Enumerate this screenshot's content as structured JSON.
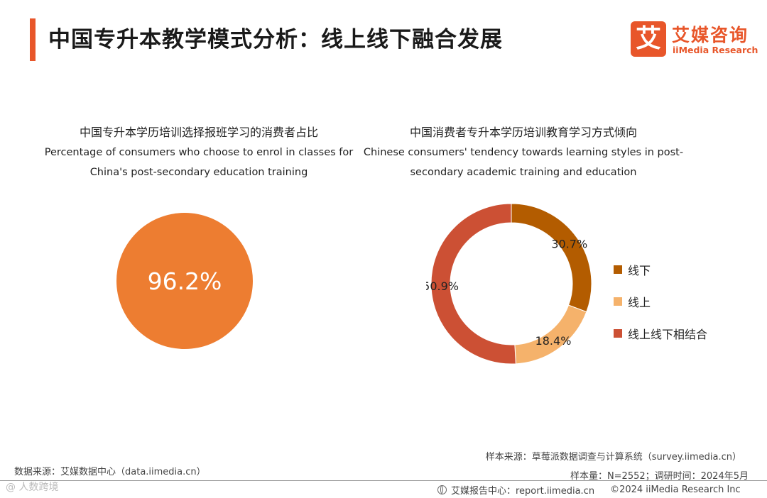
{
  "header": {
    "title": "中国专升本教学模式分析：线上线下融合发展",
    "logo_mark": "艾",
    "logo_cn": "艾媒咨询",
    "logo_en": "iiMedia Research"
  },
  "chart_data": [
    {
      "type": "pie",
      "title_zh": "中国专升本学历培训选择报班学习的消费者占比",
      "title_en_line1": "Percentage of consumers who choose to enrol in classes for",
      "title_en_line2": "China's post-secondary education training",
      "value": 96.2,
      "value_label": "96.2%",
      "color": "#ed7d31"
    },
    {
      "type": "donut",
      "title_zh": "中国消费者专升本学历培训教育学习方式倾向",
      "title_en_line1": "Chinese consumers' tendency towards learning styles in post-",
      "title_en_line2": "secondary academic training and education",
      "series": [
        {
          "name": "线下",
          "value": 30.7,
          "label": "30.7%",
          "color": "#b35c00"
        },
        {
          "name": "线上",
          "value": 18.4,
          "label": "18.4%",
          "color": "#f5b26b"
        },
        {
          "name": "线上线下相结合",
          "value": 50.9,
          "label": "50.9%",
          "color": "#cc5034"
        }
      ]
    }
  ],
  "footer": {
    "data_source": "数据来源：艾媒数据中心（data.iimedia.cn）",
    "watermark": "@ 人数跨境",
    "sample_source": "样本来源：草莓派数据调查与计算系统（survey.iimedia.cn）",
    "sample_info": "样本量：N=2552；调研时间：2024年5月",
    "report_center": "艾媒报告中心：report.iimedia.cn",
    "copyright": "©2024  iiMedia Research  Inc"
  }
}
